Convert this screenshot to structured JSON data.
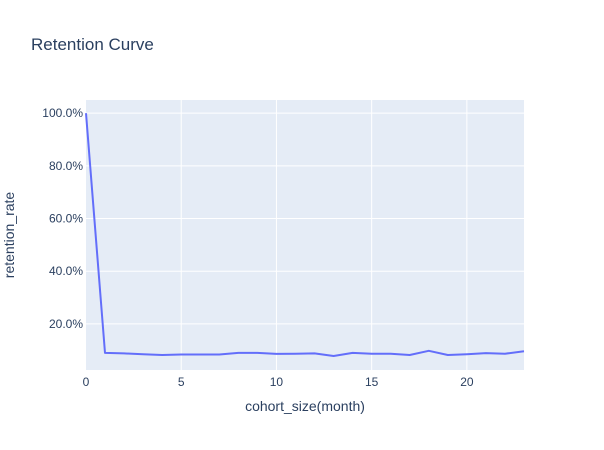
{
  "chart_data": {
    "type": "line",
    "title": "Retention Curve",
    "xlabel": "cohort_size(month)",
    "ylabel": "retention_rate",
    "xlim": [
      0,
      23
    ],
    "ylim": [
      0.025,
      1.05
    ],
    "x_ticks": [
      0,
      5,
      10,
      15,
      20
    ],
    "x_tick_labels": [
      "0",
      "5",
      "10",
      "15",
      "20"
    ],
    "y_ticks": [
      0.2,
      0.4,
      0.6,
      0.8,
      1.0
    ],
    "y_tick_labels": [
      "20.0%",
      "40.0%",
      "60.0%",
      "80.0%",
      "100.0%"
    ],
    "grid": true,
    "colors": {
      "plot_background": "#e5ecf6",
      "grid": "#ffffff",
      "line": "#636efa",
      "text": "#2a3f5f"
    },
    "series": [
      {
        "x": [
          0,
          1,
          2,
          3,
          4,
          5,
          6,
          7,
          8,
          9,
          10,
          11,
          12,
          13,
          14,
          15,
          16,
          17,
          18,
          19,
          20,
          21,
          22,
          23
        ],
        "values": [
          1.0,
          0.09,
          0.088,
          0.085,
          0.082,
          0.084,
          0.084,
          0.084,
          0.09,
          0.09,
          0.086,
          0.087,
          0.088,
          0.078,
          0.09,
          0.087,
          0.087,
          0.082,
          0.098,
          0.082,
          0.085,
          0.089,
          0.087,
          0.096
        ]
      }
    ]
  }
}
